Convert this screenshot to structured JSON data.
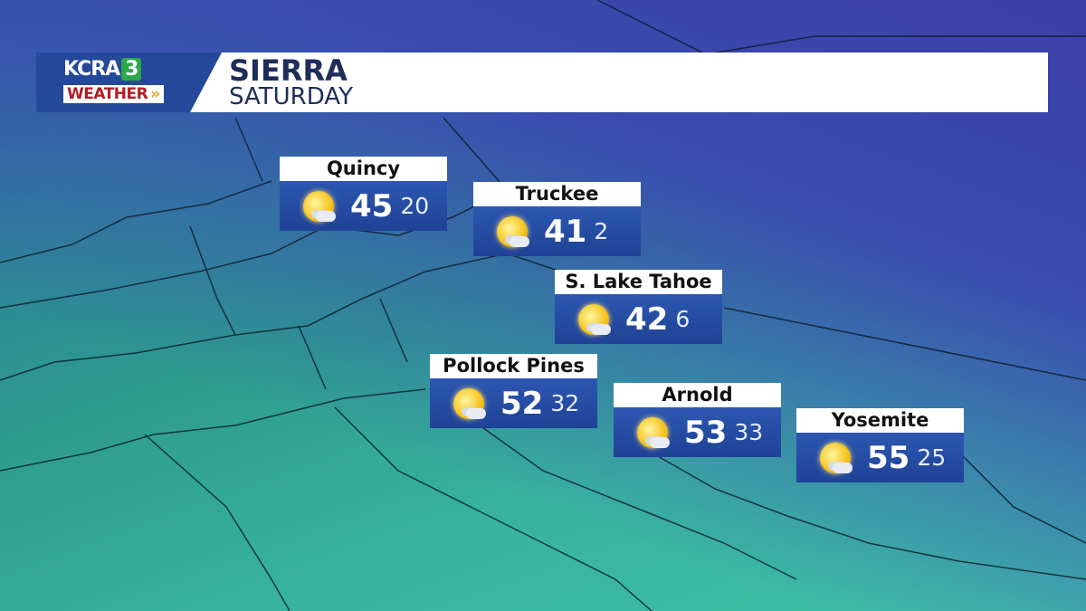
{
  "header": {
    "brand_top": "KCRA",
    "brand_channel": "3",
    "brand_bottom": "WEATHER",
    "title": "SIERRA",
    "subtitle": "SATURDAY"
  },
  "icons": {
    "forecast": "mostly-sunny-icon"
  },
  "locations": [
    {
      "name": "Quincy",
      "high": "45",
      "low": "20"
    },
    {
      "name": "Truckee",
      "high": "41",
      "low": "2"
    },
    {
      "name": "S. Lake Tahoe",
      "high": "42",
      "low": "6"
    },
    {
      "name": "Pollock Pines",
      "high": "52",
      "low": "32"
    },
    {
      "name": "Arnold",
      "high": "53",
      "low": "33"
    },
    {
      "name": "Yosemite",
      "high": "55",
      "low": "25"
    }
  ]
}
